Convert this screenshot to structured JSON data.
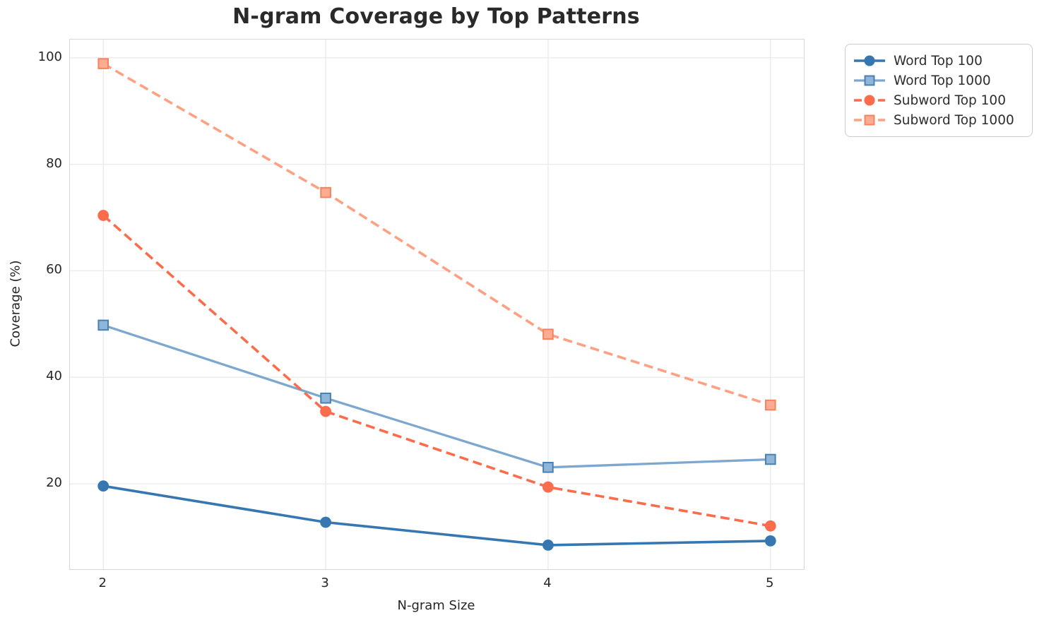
{
  "chart_data": {
    "type": "line",
    "title": "N-gram Coverage by Top Patterns",
    "xlabel": "N-gram Size",
    "ylabel": "Coverage (%)",
    "x": [
      2,
      3,
      4,
      5
    ],
    "xticks": [
      "2",
      "3",
      "4",
      "5"
    ],
    "yticks": [
      "100",
      "80",
      "60",
      "40",
      "20"
    ],
    "ytick_values": [
      100,
      80,
      60,
      40,
      20
    ],
    "xtick_values": [
      2,
      3,
      4,
      5
    ],
    "xlim": [
      1.85,
      5.15
    ],
    "ylim": [
      3.98,
      103.42
    ],
    "grid": true,
    "legend_position": "upper right, outside axes",
    "series": [
      {
        "name": "Word Top 100",
        "values": [
          19.6,
          12.8,
          8.5,
          9.3
        ],
        "color": "#3677b1",
        "linestyle": "solid",
        "linewidth": 3.6,
        "marker": "circle",
        "marker_fill": "#3677b1",
        "marker_edge": "#3677b1"
      },
      {
        "name": "Word Top 1000",
        "values": [
          49.8,
          36.1,
          23.1,
          24.6
        ],
        "color": "#7da7cf",
        "linestyle": "solid",
        "linewidth": 3.3,
        "marker": "square",
        "marker_fill": "#8fb5d8",
        "marker_edge": "#4a80b0"
      },
      {
        "name": "Subword Top 100",
        "values": [
          70.4,
          33.6,
          19.4,
          12.1
        ],
        "color": "#fa6c4c",
        "linestyle": "dashed",
        "linewidth": 3.6,
        "marker": "circle",
        "marker_fill": "#fa6c4c",
        "marker_edge": "#fa6c4c"
      },
      {
        "name": "Subword Top 1000",
        "values": [
          98.9,
          74.7,
          48.1,
          34.8
        ],
        "color": "#fda184",
        "linestyle": "dashed",
        "linewidth": 3.6,
        "marker": "square",
        "marker_fill": "#fcac90",
        "marker_edge": "#f7825f"
      }
    ]
  },
  "style": {
    "grid_color": "#ebebee",
    "spine_color": "#d6d6db",
    "text_color": "#262626",
    "legend_border_color": "#cccccc",
    "background_color": "#ffffff"
  }
}
